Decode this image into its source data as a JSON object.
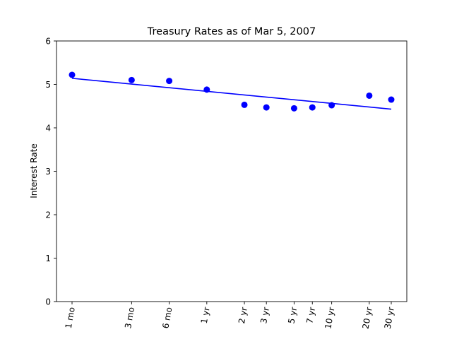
{
  "chart_data": {
    "type": "scatter",
    "title": "Treasury Rates as of Mar 5, 2007",
    "xlabel": "",
    "ylabel": "Interest Rate",
    "ylim": [
      0,
      6
    ],
    "yticks": [
      0,
      1,
      2,
      3,
      4,
      5,
      6
    ],
    "ytick_labels": [
      "0",
      "1",
      "2",
      "3",
      "4",
      "5",
      "6"
    ],
    "x_scale": "log",
    "x_tick_positions_months": [
      1,
      3,
      6,
      12,
      24,
      36,
      60,
      84,
      120,
      240,
      360
    ],
    "x_tick_labels": [
      "1 mo",
      "3 mo",
      "6 mo",
      "1 yr",
      "2 yr",
      "3 yr",
      "5 yr",
      "7 yr",
      "10 yr",
      "20 yr",
      "30 yr"
    ],
    "x_tick_label_rotation": "rotated",
    "series": [
      {
        "kind": "points",
        "color": "#0000ff",
        "x": [
          1,
          3,
          6,
          12,
          24,
          36,
          60,
          84,
          120,
          240,
          360
        ],
        "y": [
          5.22,
          5.1,
          5.08,
          4.88,
          4.53,
          4.47,
          4.45,
          4.47,
          4.52,
          4.74,
          4.65
        ]
      },
      {
        "kind": "fit-line",
        "color": "#0000ff",
        "x": [
          1,
          360
        ],
        "y": [
          5.14,
          4.43
        ]
      }
    ],
    "grid": false,
    "legend": "none"
  }
}
